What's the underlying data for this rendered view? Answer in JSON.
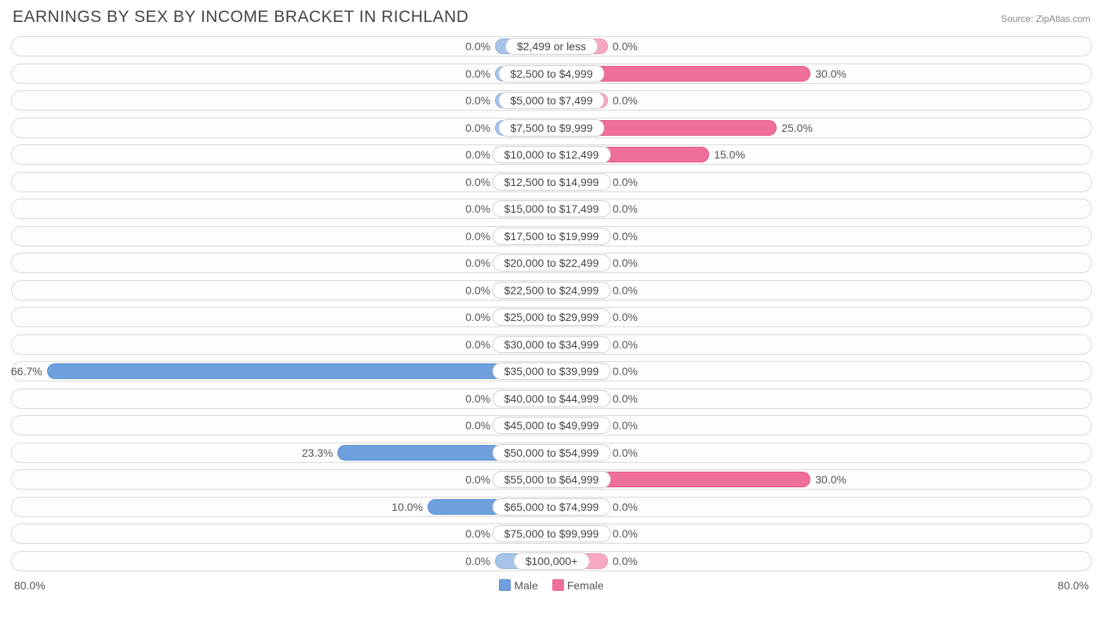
{
  "header": {
    "title": "EARNINGS BY SEX BY INCOME BRACKET IN RICHLAND",
    "source_prefix": "Source: ",
    "source_name": "ZipAtlas.com"
  },
  "chart": {
    "type": "diverging-bar",
    "axis_max": 80.0,
    "axis_label_left": "80.0%",
    "axis_label_right": "80.0%",
    "base_bar_pct": 8.0,
    "big_threshold": 5.0,
    "colors": {
      "male_base": "#a7c4e8",
      "male_big": "#6fa0dd",
      "male_border": "#5a8fd6",
      "female_base": "#f7a8c1",
      "female_big": "#ef6e9a",
      "female_border": "#ed6b97",
      "track_border": "#d9d9d9",
      "pill_border": "#cfcfcf",
      "text": "#555"
    },
    "legend": {
      "male": "Male",
      "female": "Female"
    },
    "rows": [
      {
        "category": "$2,499 or less",
        "male": 0.0,
        "female": 0.0
      },
      {
        "category": "$2,500 to $4,999",
        "male": 0.0,
        "female": 30.0
      },
      {
        "category": "$5,000 to $7,499",
        "male": 0.0,
        "female": 0.0
      },
      {
        "category": "$7,500 to $9,999",
        "male": 0.0,
        "female": 25.0
      },
      {
        "category": "$10,000 to $12,499",
        "male": 0.0,
        "female": 15.0
      },
      {
        "category": "$12,500 to $14,999",
        "male": 0.0,
        "female": 0.0
      },
      {
        "category": "$15,000 to $17,499",
        "male": 0.0,
        "female": 0.0
      },
      {
        "category": "$17,500 to $19,999",
        "male": 0.0,
        "female": 0.0
      },
      {
        "category": "$20,000 to $22,499",
        "male": 0.0,
        "female": 0.0
      },
      {
        "category": "$22,500 to $24,999",
        "male": 0.0,
        "female": 0.0
      },
      {
        "category": "$25,000 to $29,999",
        "male": 0.0,
        "female": 0.0
      },
      {
        "category": "$30,000 to $34,999",
        "male": 0.0,
        "female": 0.0
      },
      {
        "category": "$35,000 to $39,999",
        "male": 66.7,
        "female": 0.0
      },
      {
        "category": "$40,000 to $44,999",
        "male": 0.0,
        "female": 0.0
      },
      {
        "category": "$45,000 to $49,999",
        "male": 0.0,
        "female": 0.0
      },
      {
        "category": "$50,000 to $54,999",
        "male": 23.3,
        "female": 0.0
      },
      {
        "category": "$55,000 to $64,999",
        "male": 0.0,
        "female": 30.0
      },
      {
        "category": "$65,000 to $74,999",
        "male": 10.0,
        "female": 0.0
      },
      {
        "category": "$75,000 to $99,999",
        "male": 0.0,
        "female": 0.0
      },
      {
        "category": "$100,000+",
        "male": 0.0,
        "female": 0.0
      }
    ]
  }
}
